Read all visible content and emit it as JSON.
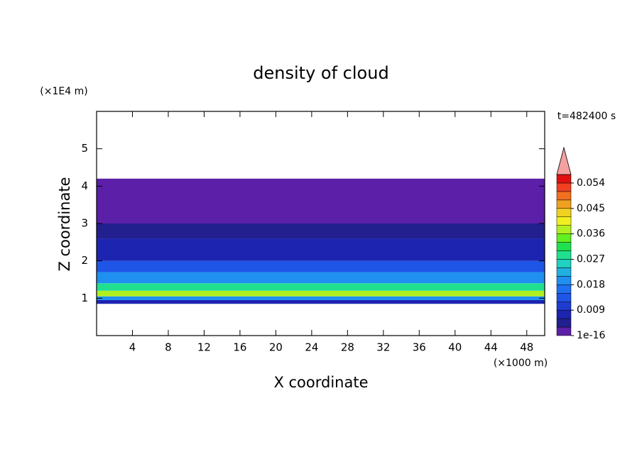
{
  "chart_data": {
    "type": "contour",
    "title": "density of cloud",
    "xlabel": "X coordinate",
    "ylabel": "Z coordinate",
    "xunit": "(×1000 m)",
    "yunit": "(×1E4 m)",
    "annotation": "t=482400 s",
    "xlim": [
      0,
      50
    ],
    "ylim": [
      0,
      6
    ],
    "xticks": [
      4,
      8,
      12,
      16,
      20,
      24,
      28,
      32,
      36,
      40,
      44,
      48
    ],
    "yticks": [
      1,
      2,
      3,
      4,
      5
    ],
    "ybins": [
      0.85,
      0.95,
      1.05,
      1.2,
      1.4,
      1.7,
      2.0,
      2.6,
      3.0,
      4.2
    ],
    "values": [
      0.006,
      0.018,
      0.036,
      0.027,
      0.018,
      0.012,
      0.008,
      0.004,
      0.001
    ],
    "levels": [
      1e-16,
      0.003,
      0.006,
      0.009,
      0.012,
      0.015,
      0.018,
      0.021,
      0.024,
      0.027,
      0.03,
      0.033,
      0.036,
      0.039,
      0.042,
      0.045,
      0.048,
      0.051,
      0.054,
      0.057
    ],
    "colors": [
      "#5b1fa8",
      "#22208f",
      "#1c24b0",
      "#1e3cd0",
      "#1f55e6",
      "#1f70f0",
      "#2090f0",
      "#20b0e0",
      "#20d0c0",
      "#20e090",
      "#20e050",
      "#60f020",
      "#b0f020",
      "#f0f020",
      "#f0d020",
      "#f0a020",
      "#f07020",
      "#f04020",
      "#e01010"
    ],
    "extend_color": "#f4a0a0",
    "colorbar_ticks": [
      1e-16,
      0.009,
      0.018,
      0.027,
      0.036,
      0.045,
      0.054
    ]
  }
}
